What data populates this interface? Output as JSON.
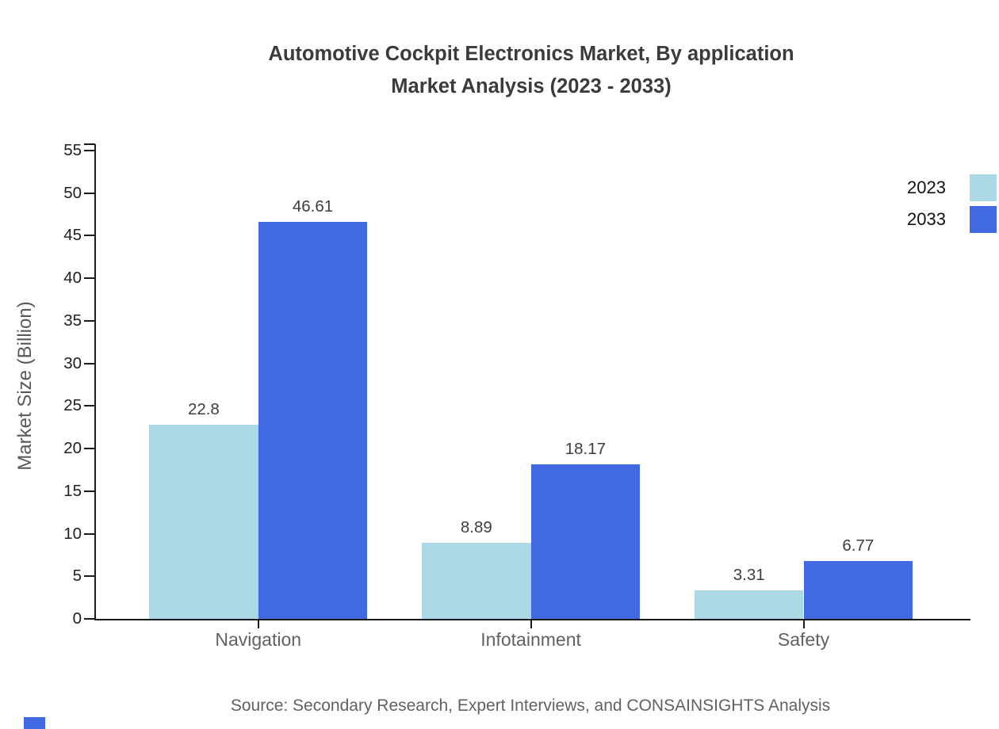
{
  "title": {
    "line1": "Automotive Cockpit Electronics Market, By application",
    "line2": "Market Analysis (2023 - 2033)"
  },
  "chart_data": {
    "type": "bar",
    "categories": [
      "Navigation",
      "Infotainment",
      "Safety"
    ],
    "series": [
      {
        "name": "2023",
        "color": "#ADD8E6",
        "values": [
          22.8,
          8.89,
          3.31
        ]
      },
      {
        "name": "2033",
        "color": "#4169E1",
        "values": [
          46.61,
          18.17,
          6.77
        ]
      }
    ],
    "title": "Automotive Cockpit Electronics Market, By application Market Analysis (2023 - 2033)",
    "xlabel": "",
    "ylabel": "Market Size (Billion)",
    "ylim": [
      0,
      55
    ],
    "ytick_step": 5,
    "yticks": [
      0,
      5,
      10,
      15,
      20,
      25,
      30,
      35,
      40,
      45,
      50,
      55
    ],
    "grid": false,
    "value_labels": true,
    "legend_position": "top-right-outside-plot"
  },
  "legend": {
    "items": [
      {
        "label": "2023",
        "color": "#ADD8E6"
      },
      {
        "label": "2033",
        "color": "#4169E1"
      }
    ]
  },
  "source": "Source: Secondary Research, Expert Interviews, and CONSAINSIGHTS Analysis",
  "colors": {
    "series_2023": "#ADD8E6",
    "series_2033": "#4169E1",
    "title_text": "#3b3b3b",
    "axis_line": "#1a1a1a",
    "tick_label": "#212121",
    "category_label": "#616161",
    "value_label": "#3d3d3d",
    "axis_title": "#595959",
    "source_text": "#616161",
    "background": "#ffffff"
  }
}
